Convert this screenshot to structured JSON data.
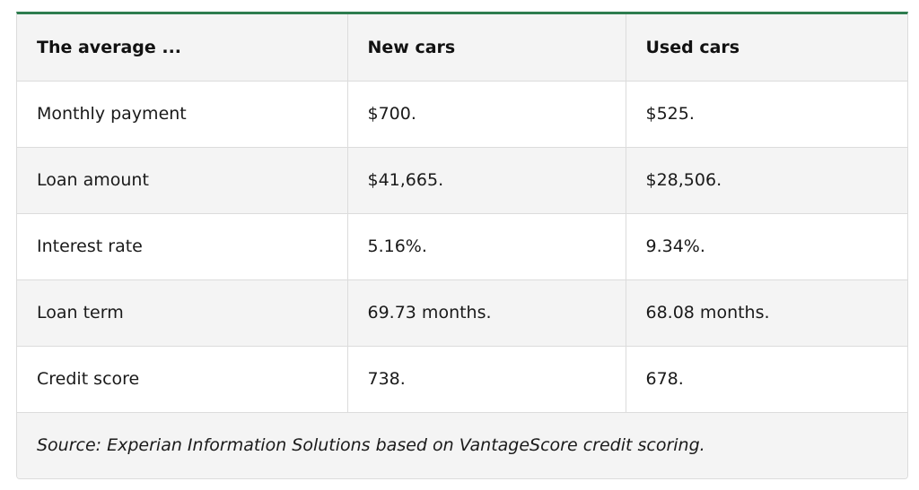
{
  "table": {
    "headers": [
      "The average ...",
      "New cars",
      "Used cars"
    ],
    "rows": [
      [
        "Monthly payment",
        "$700.",
        "$525."
      ],
      [
        "Loan amount",
        "$41,665.",
        "$28,506."
      ],
      [
        "Interest rate",
        "5.16%.",
        "9.34%."
      ],
      [
        "Loan term",
        "69.73 months.",
        "68.08 months."
      ],
      [
        "Credit score",
        "738.",
        "678."
      ]
    ],
    "source": "Source: Experian Information Solutions based on VantageScore credit scoring."
  },
  "colors": {
    "accent": "#2e7d4f",
    "stripe": "#f4f4f4",
    "border": "#dcdcdc"
  }
}
